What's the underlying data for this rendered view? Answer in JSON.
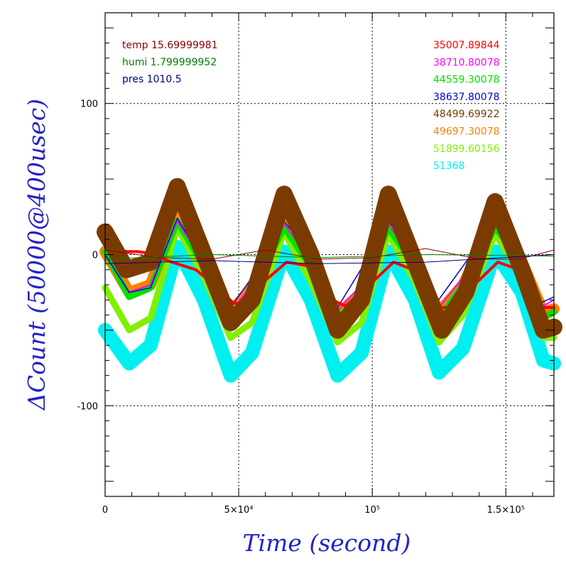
{
  "chart_data": {
    "type": "line",
    "title": "",
    "xlabel": "Time (second)",
    "ylabel": "ΔCount (50000@400usec)",
    "xlim": [
      0,
      168000
    ],
    "ylim": [
      -160,
      160
    ],
    "grid": true,
    "x_ticks": [
      {
        "value": 0,
        "label": "0"
      },
      {
        "value": 50000,
        "label": "5×10⁴"
      },
      {
        "value": 100000,
        "label": "10⁵"
      },
      {
        "value": 150000,
        "label": "1.5×10⁵"
      }
    ],
    "y_ticks": [
      {
        "value": 100,
        "label": "100"
      },
      {
        "value": 0,
        "label": "0"
      },
      {
        "value": -100,
        "label": "-100"
      }
    ],
    "legend_left_placement": "top-left",
    "legend_left": [
      {
        "label": "temp 15.69999981",
        "color": "#8b0000"
      },
      {
        "label": "humi 1.799999952",
        "color": "#008000"
      },
      {
        "label": "pres 1010.5",
        "color": "#000080"
      }
    ],
    "legend_right_placement": "top-right",
    "series": [
      {
        "name": "35007.89844",
        "color": "#ff0000",
        "points": [
          [
            0,
            6
          ],
          [
            8000,
            2
          ],
          [
            12000,
            2
          ],
          [
            16000,
            1
          ],
          [
            25000,
            -5
          ],
          [
            34000,
            -10
          ],
          [
            42000,
            -22
          ],
          [
            48000,
            -32
          ],
          [
            53000,
            -33
          ],
          [
            58000,
            -20
          ],
          [
            68000,
            -5
          ],
          [
            78000,
            -8
          ],
          [
            85000,
            -30
          ],
          [
            90000,
            -34
          ],
          [
            96000,
            -25
          ],
          [
            108000,
            -5
          ],
          [
            118000,
            -12
          ],
          [
            125000,
            -35
          ],
          [
            131000,
            -35
          ],
          [
            137000,
            -22
          ],
          [
            147000,
            -5
          ],
          [
            155000,
            -10
          ],
          [
            162000,
            -35
          ],
          [
            168000,
            -35
          ]
        ]
      },
      {
        "name": "38710.80078",
        "color": "#ff00ff",
        "points": [
          [
            0,
            0
          ],
          [
            9000,
            -25
          ],
          [
            17000,
            -20
          ],
          [
            27000,
            22
          ],
          [
            37000,
            -5
          ],
          [
            47000,
            -38
          ],
          [
            55000,
            -20
          ],
          [
            67000,
            20
          ],
          [
            77000,
            -3
          ],
          [
            87000,
            -37
          ],
          [
            96000,
            -20
          ],
          [
            106000,
            20
          ],
          [
            116000,
            -5
          ],
          [
            125000,
            -35
          ],
          [
            134000,
            -15
          ],
          [
            146000,
            20
          ],
          [
            156000,
            -2
          ],
          [
            163000,
            -35
          ],
          [
            168000,
            -30
          ]
        ]
      },
      {
        "name": "44559.30078",
        "color": "#00e000",
        "points": [
          [
            0,
            2
          ],
          [
            9000,
            -28
          ],
          [
            17000,
            -22
          ],
          [
            27000,
            22
          ],
          [
            37000,
            -8
          ],
          [
            47000,
            -42
          ],
          [
            55000,
            -25
          ],
          [
            67000,
            18
          ],
          [
            77000,
            -8
          ],
          [
            87000,
            -42
          ],
          [
            96000,
            -25
          ],
          [
            106000,
            18
          ],
          [
            116000,
            -8
          ],
          [
            125000,
            -42
          ],
          [
            134000,
            -20
          ],
          [
            146000,
            18
          ],
          [
            156000,
            -5
          ],
          [
            164000,
            -42
          ],
          [
            168000,
            -38
          ]
        ]
      },
      {
        "name": "38637.80078",
        "color": "#0000d0",
        "points": [
          [
            0,
            0
          ],
          [
            9000,
            -25
          ],
          [
            17000,
            -22
          ],
          [
            27000,
            24
          ],
          [
            37000,
            -5
          ],
          [
            47000,
            -35
          ],
          [
            55000,
            -15
          ],
          [
            67000,
            22
          ],
          [
            77000,
            0
          ],
          [
            87000,
            -35
          ],
          [
            95000,
            -12
          ],
          [
            106000,
            22
          ],
          [
            116000,
            0
          ],
          [
            124000,
            -32
          ],
          [
            133000,
            -10
          ],
          [
            146000,
            22
          ],
          [
            156000,
            0
          ],
          [
            163000,
            -32
          ],
          [
            168000,
            -28
          ]
        ]
      },
      {
        "name": "48499.69922",
        "color": "#7b3b00",
        "points": [
          [
            0,
            15
          ],
          [
            8000,
            -10
          ],
          [
            17000,
            -5
          ],
          [
            27000,
            45
          ],
          [
            37000,
            0
          ],
          [
            47000,
            -45
          ],
          [
            55000,
            -30
          ],
          [
            67000,
            40
          ],
          [
            77000,
            0
          ],
          [
            87000,
            -50
          ],
          [
            96000,
            -30
          ],
          [
            106000,
            40
          ],
          [
            116000,
            -5
          ],
          [
            126000,
            -50
          ],
          [
            135000,
            -25
          ],
          [
            146000,
            35
          ],
          [
            156000,
            -10
          ],
          [
            164000,
            -50
          ],
          [
            168000,
            -48
          ]
        ]
      },
      {
        "name": "49697.30078",
        "color": "#ff8000",
        "points": [
          [
            0,
            2
          ],
          [
            9000,
            -25
          ],
          [
            17000,
            -20
          ],
          [
            27000,
            28
          ],
          [
            37000,
            -5
          ],
          [
            47000,
            -38
          ],
          [
            55000,
            -22
          ],
          [
            67000,
            25
          ],
          [
            77000,
            -5
          ],
          [
            87000,
            -40
          ],
          [
            96000,
            -25
          ],
          [
            106000,
            24
          ],
          [
            116000,
            -6
          ],
          [
            125000,
            -38
          ],
          [
            134000,
            -20
          ],
          [
            146000,
            24
          ],
          [
            156000,
            -5
          ],
          [
            164000,
            -38
          ],
          [
            168000,
            -36
          ]
        ]
      },
      {
        "name": "51899.60156",
        "color": "#80f000",
        "points": [
          [
            0,
            -22
          ],
          [
            9000,
            -50
          ],
          [
            17000,
            -42
          ],
          [
            27000,
            18
          ],
          [
            37000,
            -15
          ],
          [
            47000,
            -55
          ],
          [
            55000,
            -45
          ],
          [
            67000,
            15
          ],
          [
            77000,
            -18
          ],
          [
            87000,
            -58
          ],
          [
            96000,
            -45
          ],
          [
            106000,
            14
          ],
          [
            116000,
            -18
          ],
          [
            125000,
            -58
          ],
          [
            134000,
            -40
          ],
          [
            146000,
            14
          ],
          [
            156000,
            -15
          ],
          [
            164000,
            -55
          ],
          [
            168000,
            -55
          ]
        ]
      },
      {
        "name": "51368",
        "color": "#00f0f0",
        "points": [
          [
            0,
            -50
          ],
          [
            9000,
            -72
          ],
          [
            17000,
            -60
          ],
          [
            27000,
            5
          ],
          [
            37000,
            -30
          ],
          [
            47000,
            -80
          ],
          [
            55000,
            -65
          ],
          [
            67000,
            2
          ],
          [
            77000,
            -30
          ],
          [
            87000,
            -80
          ],
          [
            96000,
            -65
          ],
          [
            106000,
            2
          ],
          [
            116000,
            -30
          ],
          [
            125000,
            -78
          ],
          [
            134000,
            -62
          ],
          [
            146000,
            2
          ],
          [
            156000,
            -25
          ],
          [
            164000,
            -70
          ],
          [
            168000,
            -72
          ]
        ]
      }
    ],
    "env_traces": [
      {
        "name": "temp",
        "color": "#8b0000",
        "points": [
          [
            0,
            3
          ],
          [
            20000,
            -2
          ],
          [
            40000,
            -3
          ],
          [
            60000,
            3
          ],
          [
            80000,
            -3
          ],
          [
            100000,
            -2
          ],
          [
            120000,
            4
          ],
          [
            140000,
            -3
          ],
          [
            155000,
            -3
          ],
          [
            168000,
            3
          ]
        ]
      },
      {
        "name": "humi",
        "color": "#008000",
        "points": [
          [
            0,
            -3
          ],
          [
            40000,
            0
          ],
          [
            80000,
            -2
          ],
          [
            120000,
            0
          ],
          [
            168000,
            -1
          ]
        ]
      },
      {
        "name": "pres",
        "color": "#000080",
        "points": [
          [
            0,
            -6
          ],
          [
            40000,
            -4
          ],
          [
            80000,
            -6
          ],
          [
            120000,
            -5
          ],
          [
            168000,
            0
          ]
        ]
      }
    ]
  }
}
